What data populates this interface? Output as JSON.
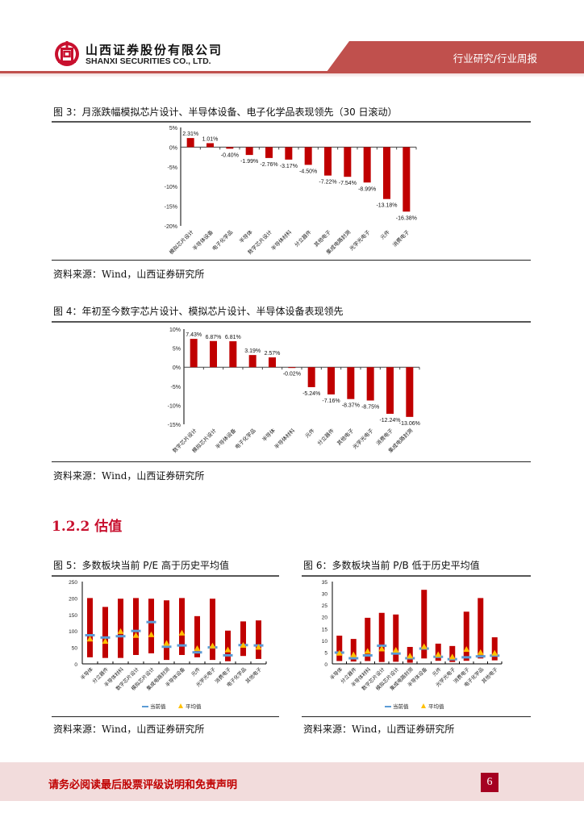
{
  "header": {
    "company_cn": "山西证券股份有限公司",
    "company_en": "SHANXI SECURITIES CO., LTD.",
    "report_type": "行业研究/行业周报",
    "brand_color": "#c0504d"
  },
  "figures": {
    "fig3": {
      "title": "图 3：月涨跌幅模拟芯片设计、半导体设备、电子化学品表现领先（30 日滚动）",
      "source": "资料来源：Wind，山西证券研究所"
    },
    "fig4": {
      "title": "图 4：年初至今数字芯片设计、模拟芯片设计、半导体设备表现领先",
      "source": "资料来源：Wind，山西证券研究所"
    },
    "fig5": {
      "title": "图 5：多数板块当前 P/E 高于历史平均值",
      "source": "资料来源：Wind，山西证券研究所"
    },
    "fig6": {
      "title": "图 6：多数板块当前 P/B 低于历史平均值",
      "source": "资料来源：Wind，山西证券研究所"
    }
  },
  "section_heading": "1.2.2  估值",
  "footer": {
    "disclaimer": "请务必阅读最后股票评级说明和免责声明",
    "page_number": "6"
  },
  "chart_data": [
    {
      "id": "fig3",
      "type": "bar",
      "title": "月涨跌幅（30日滚动）",
      "categories": [
        "模拟芯片设计",
        "半导体设备",
        "电子化学品",
        "半导体",
        "数字芯片设计",
        "半导体材料",
        "分立器件",
        "其他电子",
        "集成电路封测",
        "光学光电子",
        "元件",
        "消费电子"
      ],
      "values": [
        2.31,
        1.01,
        -0.4,
        -1.99,
        -2.76,
        -3.17,
        -4.5,
        -7.22,
        -7.54,
        -8.99,
        -13.18,
        -16.38
      ],
      "labels": [
        "2.31%",
        "1.01%",
        "-0.40%",
        "-1.99%",
        "-2.76%",
        "-3.17%",
        "-4.50%",
        "-7.22%",
        "-7.54%",
        "-8.99%",
        "-13.18%",
        "-16.38%"
      ],
      "yticks": [
        "5%",
        "0%",
        "-5%",
        "-10%",
        "-15%",
        "-20%"
      ],
      "ylim": [
        -20,
        5
      ],
      "color": "#c00000"
    },
    {
      "id": "fig4",
      "type": "bar",
      "title": "年初至今涨跌幅",
      "categories": [
        "数字芯片设计",
        "模拟芯片设计",
        "半导体设备",
        "电子化学品",
        "半导体",
        "半导体材料",
        "元件",
        "分立器件",
        "其他电子",
        "光学光电子",
        "消费电子",
        "集成电路封测"
      ],
      "values": [
        7.43,
        6.87,
        6.81,
        3.19,
        2.57,
        -0.02,
        -5.24,
        -7.16,
        -8.37,
        -8.75,
        -12.24,
        -13.06
      ],
      "labels": [
        "7.43%",
        "6.87%",
        "6.81%",
        "3.19%",
        "2.57%",
        "-0.02%",
        "-5.24%",
        "-7.16%",
        "-8.37%",
        "-8.75%",
        "-12.24%",
        "-13.06%"
      ],
      "yticks": [
        "10%",
        "5%",
        "0%",
        "-5%",
        "-10%",
        "-15%"
      ],
      "ylim": [
        -15,
        10
      ],
      "color": "#c00000"
    },
    {
      "id": "fig5",
      "type": "bar",
      "title": "P/E 历史区间、当前值与平均值",
      "categories": [
        "半导体",
        "分立器件",
        "半导体材料",
        "数字芯片设计",
        "模拟芯片设计",
        "集成电路封测",
        "半导体设备",
        "元件",
        "光学光电子",
        "消费电子",
        "电子化学品",
        "其他电子"
      ],
      "range_low": [
        20,
        18,
        18,
        27,
        32,
        12,
        27,
        20,
        12,
        8,
        24,
        15
      ],
      "range_high": [
        200,
        173,
        198,
        200,
        198,
        193,
        200,
        145,
        198,
        101,
        129,
        132
      ],
      "current": [
        87,
        80,
        84,
        100,
        127,
        52,
        56,
        35,
        50,
        26,
        57,
        56
      ],
      "average": [
        73,
        66,
        96,
        84,
        86,
        60,
        91,
        44,
        52,
        40,
        54,
        48
      ],
      "yticks": [
        "250",
        "200",
        "150",
        "100",
        "50",
        "0"
      ],
      "ylim": [
        0,
        250
      ],
      "legend": [
        "当前值",
        "平均值"
      ],
      "colors": {
        "range": "#c00000",
        "current": "#5b9bd5",
        "average": "#ffc000"
      }
    },
    {
      "id": "fig6",
      "type": "bar",
      "title": "P/B 历史区间、当前值与平均值",
      "categories": [
        "半导体",
        "分立器件",
        "半导体材料",
        "数字芯片设计",
        "模拟芯片设计",
        "集成电路封测",
        "半导体设备",
        "元件",
        "光学光电子",
        "消费电子",
        "电子化学品",
        "其他电子"
      ],
      "range_low": [
        1.2,
        1.0,
        1.2,
        0.8,
        0.9,
        0.5,
        2.3,
        1.3,
        0.8,
        1.3,
        2.3,
        1.5
      ],
      "range_high": [
        12.0,
        10.6,
        19.6,
        21.7,
        21.0,
        7.2,
        31.5,
        8.6,
        7.6,
        22.2,
        28.0,
        11.3
      ],
      "current": [
        4.8,
        2.4,
        3.6,
        7.7,
        4.4,
        2.4,
        6.5,
        3.0,
        2.0,
        2.8,
        3.2,
        3.5
      ],
      "average": [
        4.2,
        3.5,
        5.0,
        6.0,
        5.5,
        3.0,
        7.0,
        3.6,
        2.6,
        5.8,
        4.5,
        4.2
      ],
      "yticks": [
        "35",
        "30",
        "25",
        "20",
        "15",
        "10",
        "5",
        "0"
      ],
      "ylim": [
        0,
        35
      ],
      "legend": [
        "当前值",
        "平均值"
      ],
      "colors": {
        "range": "#c00000",
        "current": "#5b9bd5",
        "average": "#ffc000"
      }
    }
  ]
}
